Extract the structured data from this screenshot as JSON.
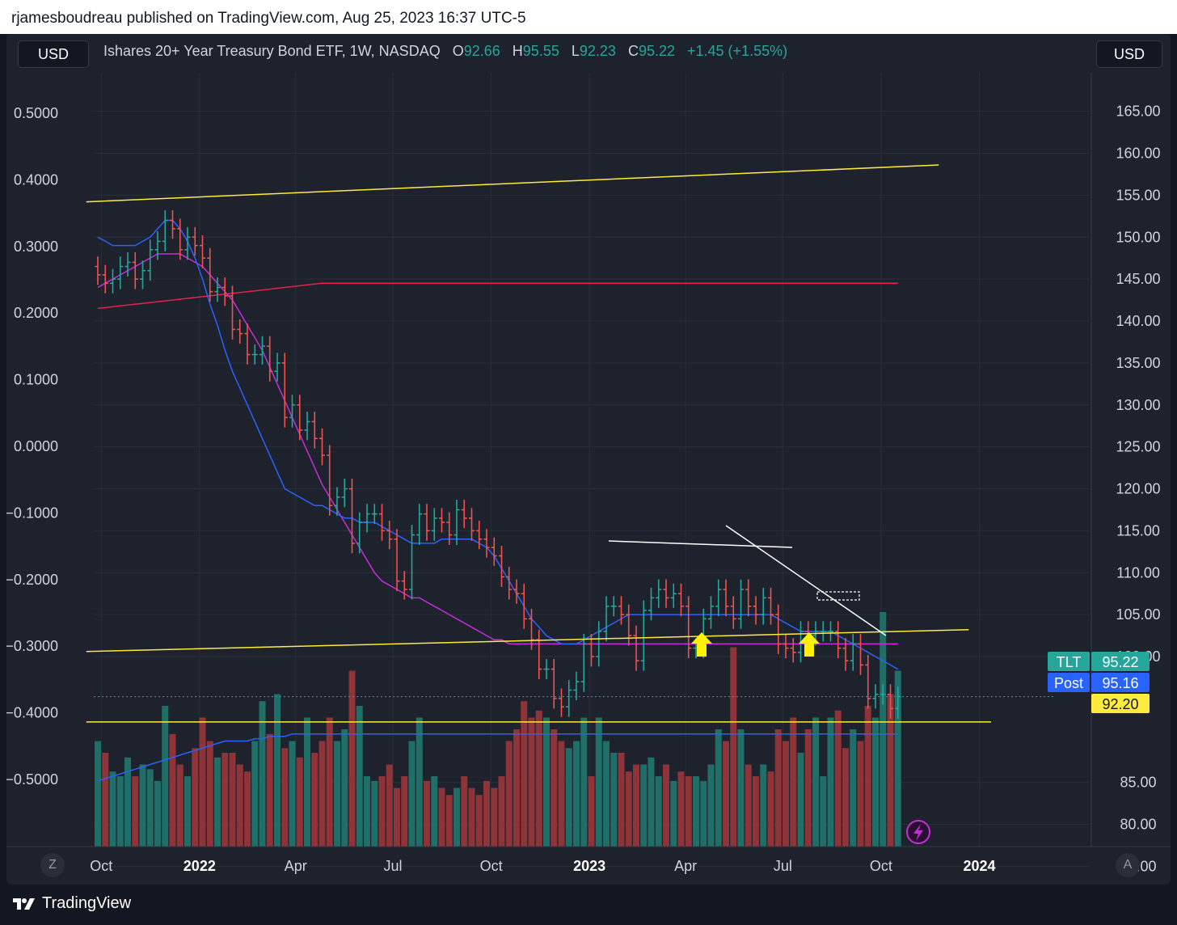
{
  "header": {
    "text": "rjamesboudreau published on TradingView.com, Aug 25, 2023 16:37 UTC-5"
  },
  "toolbar": {
    "currency_left": "USD",
    "currency_right": "USD"
  },
  "legend": {
    "name": "Ishares 20+ Year Treasury Bond ETF, 1W, NASDAQ",
    "o_label": "O",
    "o_value": "92.66",
    "h_label": "H",
    "h_value": "95.55",
    "l_label": "L",
    "l_value": "92.23",
    "c_label": "C",
    "c_value": "95.22",
    "change": "+1.45 (+1.55%)"
  },
  "footer": {
    "brand": "TradingView",
    "left_button": "Z",
    "right_button": "A"
  },
  "colors": {
    "up": "#26a69a",
    "down": "#ef5350",
    "ma_fast": "#2962ff",
    "ma_mid": "#c82cd8",
    "ma_slow": "#e91e4e",
    "trendline": "#ffeb3b",
    "drawing": "#ffffff",
    "background": "#1e222d"
  },
  "chart_data": {
    "type": "ohlc",
    "symbol": "TLT",
    "interval": "1W",
    "right_axis": {
      "ticks": [
        "165.00",
        "160.00",
        "155.00",
        "150.00",
        "145.00",
        "140.00",
        "135.00",
        "130.00",
        "125.00",
        "120.00",
        "115.00",
        "110.00",
        "105.00",
        "100.00",
        "85.00",
        "80.00",
        "75.00"
      ]
    },
    "left_axis": {
      "ticks": [
        "0.5000",
        "0.4000",
        "0.3000",
        "0.2000",
        "0.1000",
        "0.0000",
        "−0.1000",
        "−0.2000",
        "−0.3000",
        "−0.4000",
        "−0.5000"
      ]
    },
    "x_ticks": [
      {
        "label": "Oct",
        "date": "2021-10-01",
        "bold": false
      },
      {
        "label": "2022",
        "date": "2022-01-01",
        "bold": true
      },
      {
        "label": "Apr",
        "date": "2022-04-01",
        "bold": false
      },
      {
        "label": "Jul",
        "date": "2022-07-01",
        "bold": false
      },
      {
        "label": "Oct",
        "date": "2022-10-01",
        "bold": false
      },
      {
        "label": "2023",
        "date": "2023-01-01",
        "bold": true
      },
      {
        "label": "Apr",
        "date": "2023-04-01",
        "bold": false
      },
      {
        "label": "Jul",
        "date": "2023-07-01",
        "bold": false
      },
      {
        "label": "Oct",
        "date": "2023-10-01",
        "bold": false
      },
      {
        "label": "2024",
        "date": "2024-01-01",
        "bold": true
      }
    ],
    "closes": [
      145.5,
      144.5,
      145.0,
      146.5,
      147.0,
      145.0,
      146.0,
      148.5,
      149.5,
      152.0,
      151.0,
      148.5,
      150.0,
      149.0,
      147.5,
      143.5,
      144.0,
      143.0,
      139.0,
      138.5,
      136.0,
      136.0,
      137.0,
      134.0,
      135.0,
      128.5,
      130.0,
      127.0,
      128.0,
      126.0,
      124.0,
      118.0,
      119.0,
      120.0,
      113.5,
      116.0,
      117.0,
      117.0,
      115.0,
      114.0,
      109.0,
      108.0,
      114.5,
      117.0,
      115.0,
      116.5,
      116.0,
      114.5,
      117.5,
      116.5,
      115.0,
      114.0,
      113.0,
      112.0,
      109.5,
      108.0,
      107.5,
      104.5,
      102.0,
      98.5,
      98.5,
      95.0,
      94.0,
      96.0,
      97.0,
      101.5,
      100.0,
      103.0,
      106.0,
      106.0,
      105.0,
      102.5,
      99.5,
      105.5,
      107.0,
      108.0,
      107.0,
      107.5,
      106.0,
      101.0,
      101.0,
      104.5,
      106.0,
      108.0,
      106.0,
      104.5,
      108.0,
      106.0,
      105.0,
      107.0,
      105.0,
      101.5,
      101.0,
      100.5,
      103.0,
      102.5,
      103.0,
      103.0,
      103.0,
      101.0,
      99.5,
      101.5,
      99.0,
      95.0,
      95.5,
      95.5,
      93.8,
      95.22
    ],
    "ma_fast": [
      150.0,
      149.5,
      149.0,
      149.0,
      149.0,
      149.0,
      149.5,
      150.0,
      151.0,
      152.0,
      152.0,
      151.0,
      149.5,
      147.5,
      145.0,
      142.0,
      139.5,
      136.5,
      134.0,
      132.0,
      130.0,
      128.0,
      126.0,
      124.0,
      122.0,
      120.0,
      119.5,
      119.0,
      118.5,
      118.0,
      118.0,
      117.5,
      117.0,
      116.5,
      116.5,
      116.0,
      116.0,
      116.0,
      115.5,
      115.0,
      114.5,
      114.0,
      113.5,
      113.5,
      113.5,
      113.5,
      114.0,
      114.0,
      114.0,
      114.0,
      114.0,
      113.5,
      113.0,
      112.0,
      110.5,
      109.0,
      107.5,
      106.0,
      104.5,
      103.5,
      102.5,
      102.0,
      101.5,
      101.5,
      101.5,
      102.0,
      102.5,
      103.0,
      103.5,
      104.0,
      104.5,
      105.0,
      105.0,
      105.0,
      105.0,
      105.0,
      105.0,
      105.0,
      105.0,
      105.0,
      105.0,
      105.0,
      105.0,
      105.0,
      105.0,
      105.0,
      105.0,
      105.0,
      105.0,
      105.0,
      105.0,
      104.5,
      104.0,
      103.5,
      103.0,
      103.0,
      103.0,
      103.0,
      103.0,
      102.5,
      102.0,
      101.5,
      101.0,
      100.5,
      100.0,
      99.5,
      99.0,
      98.5
    ],
    "ma_mid": [
      144.0,
      144.5,
      145.0,
      145.5,
      146.0,
      146.5,
      147.0,
      147.5,
      148.0,
      148.0,
      148.0,
      148.0,
      147.5,
      147.0,
      146.5,
      145.5,
      144.5,
      143.5,
      142.5,
      141.0,
      139.5,
      138.0,
      136.5,
      134.5,
      132.5,
      130.5,
      128.5,
      126.5,
      124.5,
      122.5,
      120.5,
      119.0,
      117.5,
      116.0,
      114.5,
      113.0,
      111.5,
      110.0,
      109.0,
      108.5,
      108.0,
      107.5,
      107.0,
      107.0,
      106.5,
      106.0,
      105.5,
      105.0,
      104.5,
      104.0,
      103.5,
      103.0,
      102.5,
      102.0,
      102.0,
      101.5,
      101.5,
      101.5,
      101.5,
      101.5,
      101.5,
      101.5,
      101.5,
      101.5,
      101.5,
      101.5,
      101.5,
      101.5,
      101.5,
      101.5,
      101.5,
      101.5,
      101.5,
      101.5,
      101.5,
      101.5,
      101.5,
      101.5,
      101.5,
      101.5,
      101.5,
      101.5,
      101.5,
      101.5,
      101.5,
      101.5,
      101.5,
      101.5,
      101.5,
      101.5,
      101.5,
      101.5,
      101.5,
      101.5,
      101.5,
      101.5,
      101.5,
      101.5,
      101.5,
      101.5,
      101.5,
      101.5,
      101.5,
      101.5,
      101.5,
      101.5,
      101.5,
      101.5
    ],
    "ma_slow": [
      141.5,
      141.6,
      141.7,
      141.8,
      141.9,
      142.0,
      142.1,
      142.2,
      142.3,
      142.4,
      142.5,
      142.6,
      142.7,
      142.8,
      142.9,
      143.0,
      143.1,
      143.2,
      143.3,
      143.4,
      143.5,
      143.6,
      143.7,
      143.8,
      143.9,
      144.0,
      144.1,
      144.2,
      144.3,
      144.4,
      144.5,
      144.5,
      144.5,
      144.5,
      144.5,
      144.5,
      144.5,
      144.5,
      144.5,
      144.5,
      144.5,
      144.5,
      144.5,
      144.5,
      144.5,
      144.5,
      144.5,
      144.5,
      144.5,
      144.5,
      144.5,
      144.5,
      144.5,
      144.5,
      144.5,
      144.5,
      144.5,
      144.5,
      144.5,
      144.5,
      144.5,
      144.5,
      144.5,
      144.5,
      144.5,
      144.5,
      144.5,
      144.5,
      144.5,
      144.5,
      144.5,
      144.5,
      144.5,
      144.5,
      144.5,
      144.5,
      144.5,
      144.5,
      144.5,
      144.5,
      144.5,
      144.5,
      144.5,
      144.5,
      144.5,
      144.5,
      144.5,
      144.5,
      144.5,
      144.5,
      144.5,
      144.5,
      144.5,
      144.5,
      144.5,
      144.5,
      144.5,
      144.5,
      144.5,
      144.5,
      144.5,
      144.5,
      144.5,
      144.5,
      144.5,
      144.5,
      144.5,
      144.5
    ],
    "volume": [
      0.45,
      0.4,
      0.32,
      0.3,
      0.38,
      0.3,
      0.35,
      0.33,
      0.28,
      0.6,
      0.48,
      0.35,
      0.3,
      0.42,
      0.55,
      0.45,
      0.38,
      0.4,
      0.4,
      0.35,
      0.32,
      0.45,
      0.62,
      0.48,
      0.65,
      0.42,
      0.45,
      0.38,
      0.55,
      0.4,
      0.45,
      0.55,
      0.45,
      0.5,
      0.75,
      0.6,
      0.3,
      0.28,
      0.3,
      0.35,
      0.25,
      0.3,
      0.45,
      0.55,
      0.28,
      0.3,
      0.25,
      0.22,
      0.25,
      0.3,
      0.25,
      0.22,
      0.28,
      0.25,
      0.3,
      0.45,
      0.5,
      0.62,
      0.55,
      0.58,
      0.55,
      0.5,
      0.45,
      0.42,
      0.45,
      0.55,
      0.3,
      0.55,
      0.45,
      0.4,
      0.4,
      0.32,
      0.35,
      0.35,
      0.38,
      0.3,
      0.35,
      0.28,
      0.32,
      0.3,
      0.3,
      0.28,
      0.35,
      0.5,
      0.45,
      0.85,
      0.5,
      0.35,
      0.3,
      0.35,
      0.32,
      0.5,
      0.45,
      0.55,
      0.4,
      0.5,
      0.55,
      0.3,
      0.55,
      0.58,
      0.42,
      0.5,
      0.45,
      0.6,
      0.55,
      1.0,
      0.65,
      0.75
    ],
    "volume_ma": [
      0.28,
      0.29,
      0.3,
      0.31,
      0.32,
      0.33,
      0.34,
      0.35,
      0.36,
      0.37,
      0.38,
      0.39,
      0.4,
      0.41,
      0.42,
      0.43,
      0.44,
      0.45,
      0.45,
      0.45,
      0.45,
      0.46,
      0.46,
      0.47,
      0.47,
      0.47,
      0.48,
      0.48,
      0.48,
      0.48,
      0.48,
      0.48,
      0.48,
      0.48,
      0.48,
      0.48,
      0.48,
      0.48,
      0.48,
      0.48,
      0.48,
      0.48,
      0.48,
      0.48,
      0.48,
      0.48,
      0.48,
      0.48,
      0.48,
      0.48,
      0.48,
      0.48,
      0.48,
      0.48,
      0.48,
      0.48,
      0.48,
      0.48,
      0.48,
      0.48,
      0.48,
      0.48,
      0.48,
      0.48,
      0.48,
      0.48,
      0.48,
      0.48,
      0.48,
      0.48,
      0.48,
      0.48,
      0.48,
      0.48,
      0.48,
      0.48,
      0.48,
      0.48,
      0.48,
      0.48,
      0.48,
      0.48,
      0.48,
      0.48,
      0.48,
      0.48,
      0.48,
      0.48,
      0.48,
      0.48,
      0.48,
      0.48,
      0.48,
      0.48,
      0.48,
      0.48,
      0.48,
      0.48,
      0.48,
      0.48,
      0.48,
      0.48,
      0.48,
      0.48,
      0.48,
      0.48,
      0.48,
      0.48
    ],
    "trendlines": [
      {
        "from": {
          "date": "2021-09-17",
          "price": 154.2
        },
        "to": {
          "date": "2023-11-24",
          "price": 158.6
        }
      },
      {
        "from": {
          "date": "2021-09-17",
          "price": 100.6
        },
        "to": {
          "date": "2023-12-22",
          "price": 103.2
        }
      },
      {
        "from": {
          "date": "2021-09-17",
          "price": 92.2
        },
        "to": {
          "date": "2024-01-12",
          "price": 92.2
        }
      }
    ],
    "price_labels": [
      {
        "tag": "TLT",
        "value": "95.22",
        "color": "#26a69a"
      },
      {
        "tag": "Post",
        "value": "95.16",
        "color": "#2962ff"
      },
      {
        "tag": "",
        "value": "92.20",
        "color": "#ffeb3b"
      }
    ]
  }
}
